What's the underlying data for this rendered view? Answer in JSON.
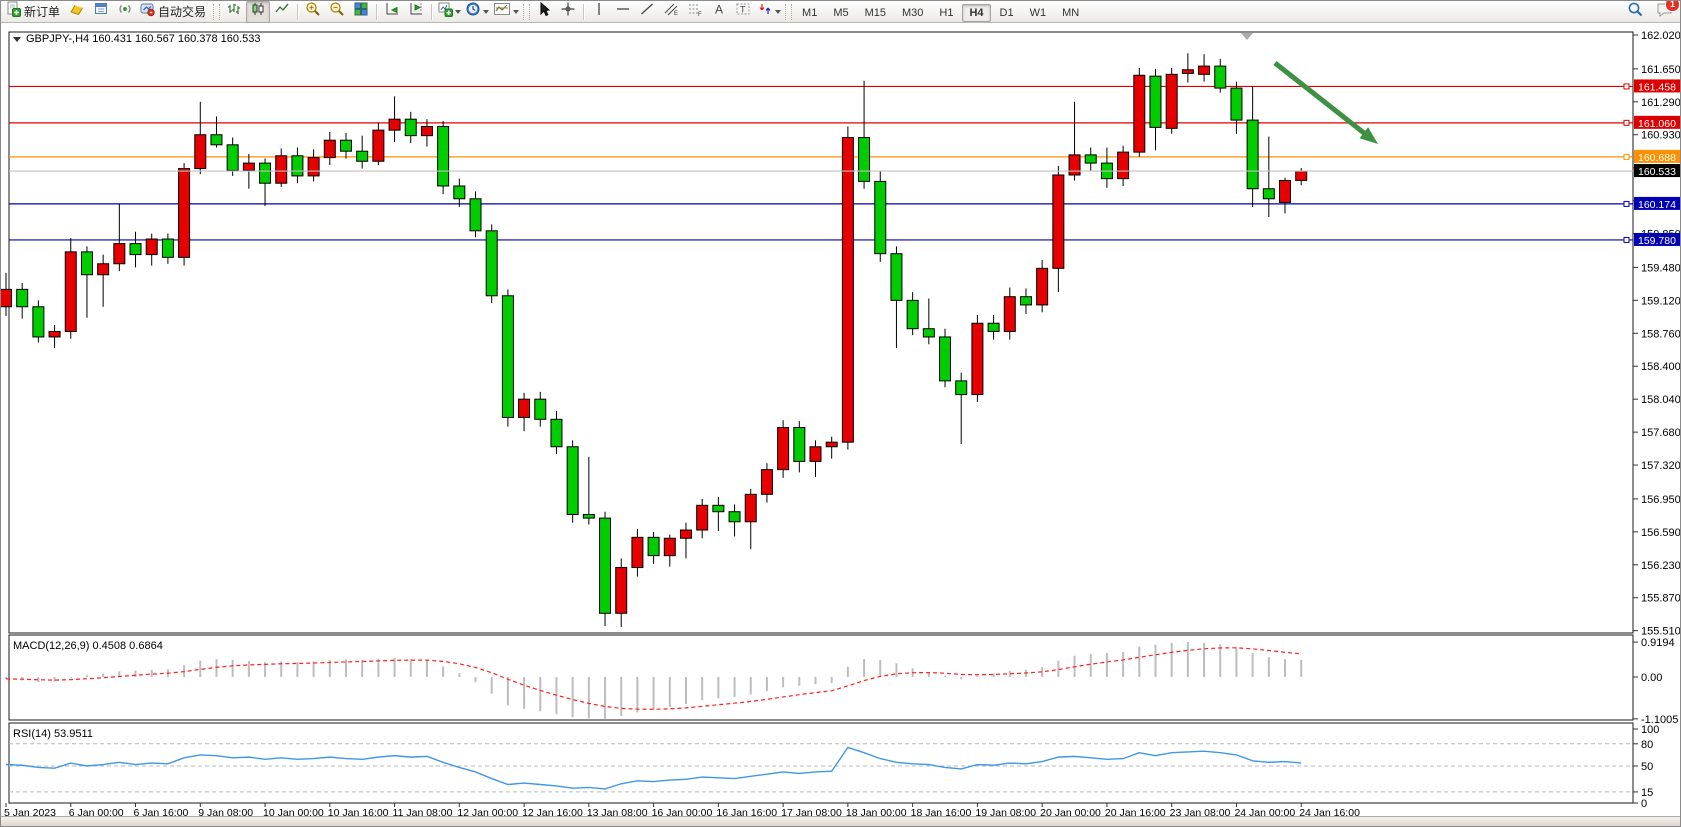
{
  "toolbar": {
    "new_order_label": "新订单",
    "auto_trading_label": "自动交易",
    "timeframes": [
      {
        "label": "M1",
        "active": false
      },
      {
        "label": "M5",
        "active": false
      },
      {
        "label": "M15",
        "active": false
      },
      {
        "label": "M30",
        "active": false
      },
      {
        "label": "H1",
        "active": false
      },
      {
        "label": "H4",
        "active": true
      },
      {
        "label": "D1",
        "active": false
      },
      {
        "label": "W1",
        "active": false
      },
      {
        "label": "MN",
        "active": false
      }
    ],
    "notification_count": "1"
  },
  "chart": {
    "title": "GBPJPY-,H4  160.431 160.567 160.378 160.533",
    "symbol": "GBPJPY-",
    "timeframe": "H4",
    "current_bar": {
      "open": "160.431",
      "high": "160.567",
      "low": "160.378",
      "close": "160.533"
    },
    "price_axis_ticks": [
      "162.020",
      "161.650",
      "161.290",
      "160.930",
      "160.570",
      "160.210",
      "159.850",
      "159.480",
      "159.120",
      "158.760",
      "158.400",
      "158.040",
      "157.680",
      "157.320",
      "156.950",
      "156.590",
      "156.230",
      "155.870",
      "155.510"
    ],
    "levels": [
      {
        "price": 161.458,
        "label": "161.458",
        "color": "#dd0000"
      },
      {
        "price": 161.06,
        "label": "161.060",
        "color": "#dd0000"
      },
      {
        "price": 160.688,
        "label": "160.688",
        "color": "#ff9000"
      },
      {
        "price": 160.174,
        "label": "160.174",
        "color": "#0000b4"
      },
      {
        "price": 159.78,
        "label": "159.780",
        "color": "#0000b4"
      }
    ],
    "current_price": {
      "value": 160.533,
      "label": "160.533",
      "line_color": "#c0c0c0",
      "badge_color": "#000000"
    },
    "arrow_color": "#3e9142",
    "up_color": "#e60000",
    "down_color": "#00cc00"
  },
  "macd_panel": {
    "label": "MACD(12,26,9) 0.4508 0.6864",
    "main_value": 0.4508,
    "signal_value": 0.6864,
    "axis_ticks": [
      {
        "v": 0.9194,
        "label": "0.9194"
      },
      {
        "v": 0,
        "label": "0.00"
      },
      {
        "v": -1.1005,
        "label": "-1.1005"
      }
    ]
  },
  "rsi_panel": {
    "label": "RSI(14) 53.9511",
    "value": 53.9511,
    "axis_ticks": [
      {
        "v": 100,
        "label": "100"
      },
      {
        "v": 80,
        "label": "80"
      },
      {
        "v": 50,
        "label": "50"
      },
      {
        "v": 15,
        "label": "15"
      },
      {
        "v": 0,
        "label": "0"
      }
    ],
    "level_lines": [
      80,
      50,
      15
    ]
  },
  "time_axis": {
    "labels": [
      "5 Jan 2023",
      "6 Jan 00:00",
      "6 Jan 16:00",
      "9 Jan 08:00",
      "10 Jan 00:00",
      "10 Jan 16:00",
      "11 Jan 08:00",
      "12 Jan 00:00",
      "12 Jan 16:00",
      "13 Jan 08:00",
      "16 Jan 00:00",
      "16 Jan 16:00",
      "17 Jan 08:00",
      "18 Jan 00:00",
      "18 Jan 16:00",
      "19 Jan 08:00",
      "20 Jan 00:00",
      "20 Jan 16:00",
      "23 Jan 08:00",
      "24 Jan 00:00",
      "24 Jan 16:00"
    ],
    "label_every_n_bars": 4
  },
  "chart_data": {
    "type": "candlestick",
    "title": "GBPJPY- H4",
    "ylim": [
      155.51,
      162.02
    ],
    "macd_ylim": [
      -1.1005,
      0.9194
    ],
    "ohlc": [
      [
        159.05,
        159.42,
        158.95,
        159.24
      ],
      [
        159.24,
        159.31,
        158.92,
        159.05
      ],
      [
        159.05,
        159.12,
        158.66,
        158.72
      ],
      [
        158.72,
        158.85,
        158.6,
        158.78
      ],
      [
        158.78,
        159.8,
        158.7,
        159.65
      ],
      [
        159.65,
        159.71,
        158.93,
        159.4
      ],
      [
        159.4,
        159.62,
        159.05,
        159.52
      ],
      [
        159.52,
        160.17,
        159.44,
        159.74
      ],
      [
        159.74,
        159.87,
        159.48,
        159.62
      ],
      [
        159.62,
        159.85,
        159.5,
        159.79
      ],
      [
        159.79,
        159.85,
        159.52,
        159.59
      ],
      [
        159.59,
        160.62,
        159.5,
        160.56
      ],
      [
        160.56,
        161.29,
        160.5,
        160.93
      ],
      [
        160.93,
        161.13,
        160.79,
        160.82
      ],
      [
        160.82,
        160.9,
        160.48,
        160.54
      ],
      [
        160.54,
        160.72,
        160.34,
        160.62
      ],
      [
        160.62,
        160.67,
        160.15,
        160.4
      ],
      [
        160.4,
        160.78,
        160.36,
        160.7
      ],
      [
        160.7,
        160.79,
        160.4,
        160.48
      ],
      [
        160.48,
        160.77,
        160.42,
        160.68
      ],
      [
        160.68,
        160.96,
        160.6,
        160.87
      ],
      [
        160.87,
        160.95,
        160.67,
        160.75
      ],
      [
        160.75,
        160.92,
        160.56,
        160.64
      ],
      [
        160.64,
        161.06,
        160.6,
        160.98
      ],
      [
        160.98,
        161.35,
        160.85,
        161.1
      ],
      [
        161.1,
        161.18,
        160.84,
        160.92
      ],
      [
        160.92,
        161.1,
        160.8,
        161.02
      ],
      [
        161.02,
        161.08,
        160.28,
        160.37
      ],
      [
        160.37,
        160.45,
        160.14,
        160.23
      ],
      [
        160.23,
        160.31,
        159.81,
        159.88
      ],
      [
        159.88,
        159.95,
        159.09,
        159.17
      ],
      [
        159.17,
        159.24,
        157.74,
        157.84
      ],
      [
        157.84,
        158.11,
        157.69,
        158.04
      ],
      [
        158.04,
        158.12,
        157.74,
        157.82
      ],
      [
        157.82,
        157.91,
        157.44,
        157.52
      ],
      [
        157.52,
        157.59,
        156.69,
        156.78
      ],
      [
        156.78,
        157.41,
        156.67,
        156.74
      ],
      [
        156.74,
        156.81,
        155.56,
        155.7
      ],
      [
        155.7,
        156.3,
        155.55,
        156.2
      ],
      [
        156.2,
        156.62,
        156.1,
        156.53
      ],
      [
        156.53,
        156.59,
        156.24,
        156.33
      ],
      [
        156.33,
        156.56,
        156.21,
        156.52
      ],
      [
        156.52,
        156.69,
        156.3,
        156.61
      ],
      [
        156.61,
        156.95,
        156.52,
        156.88
      ],
      [
        156.88,
        156.97,
        156.6,
        156.81
      ],
      [
        156.81,
        156.89,
        156.54,
        156.7
      ],
      [
        156.7,
        157.06,
        156.4,
        157.0
      ],
      [
        157.0,
        157.34,
        156.91,
        157.27
      ],
      [
        157.27,
        157.81,
        157.18,
        157.73
      ],
      [
        157.73,
        157.8,
        157.24,
        157.36
      ],
      [
        157.36,
        157.59,
        157.19,
        157.52
      ],
      [
        157.52,
        157.63,
        157.39,
        157.57
      ],
      [
        157.57,
        161.02,
        157.49,
        160.9
      ],
      [
        160.9,
        161.52,
        160.34,
        160.42
      ],
      [
        160.42,
        160.53,
        159.54,
        159.63
      ],
      [
        159.63,
        159.71,
        158.6,
        159.12
      ],
      [
        159.12,
        159.21,
        158.74,
        158.81
      ],
      [
        158.81,
        159.14,
        158.64,
        158.72
      ],
      [
        158.72,
        158.81,
        158.17,
        158.24
      ],
      [
        158.24,
        158.33,
        157.55,
        158.09
      ],
      [
        158.09,
        158.96,
        158.01,
        158.87
      ],
      [
        158.87,
        158.96,
        158.69,
        158.78
      ],
      [
        158.78,
        159.26,
        158.69,
        159.16
      ],
      [
        159.16,
        159.25,
        158.97,
        159.07
      ],
      [
        159.07,
        159.56,
        158.99,
        159.47
      ],
      [
        159.47,
        160.59,
        159.21,
        160.49
      ],
      [
        160.49,
        161.29,
        160.43,
        160.71
      ],
      [
        160.71,
        160.79,
        160.54,
        160.62
      ],
      [
        160.62,
        160.79,
        160.35,
        160.45
      ],
      [
        160.45,
        160.81,
        160.37,
        160.74
      ],
      [
        160.74,
        161.66,
        160.69,
        161.58
      ],
      [
        161.57,
        161.65,
        160.76,
        161.01
      ],
      [
        161.0,
        161.66,
        160.94,
        161.59
      ],
      [
        161.6,
        161.82,
        161.5,
        161.64
      ],
      [
        161.59,
        161.81,
        161.51,
        161.68
      ],
      [
        161.68,
        161.76,
        161.39,
        161.44
      ],
      [
        161.44,
        161.51,
        160.94,
        161.09
      ],
      [
        161.09,
        161.46,
        160.14,
        160.34
      ],
      [
        160.34,
        160.91,
        160.03,
        160.23
      ],
      [
        160.19,
        160.46,
        160.07,
        160.43
      ],
      [
        160.431,
        160.567,
        160.378,
        160.533
      ]
    ],
    "macd": [
      -0.05,
      -0.09,
      -0.13,
      -0.12,
      -0.02,
      0.05,
      0.09,
      0.15,
      0.17,
      0.19,
      0.2,
      0.31,
      0.43,
      0.47,
      0.45,
      0.42,
      0.39,
      0.41,
      0.39,
      0.41,
      0.44,
      0.46,
      0.45,
      0.48,
      0.5,
      0.47,
      0.44,
      0.28,
      0.1,
      -0.14,
      -0.44,
      -0.75,
      -0.84,
      -0.9,
      -0.98,
      -1.06,
      -1.09,
      -1.1,
      -1.03,
      -0.93,
      -0.86,
      -0.79,
      -0.71,
      -0.61,
      -0.56,
      -0.53,
      -0.46,
      -0.37,
      -0.27,
      -0.23,
      -0.19,
      -0.16,
      0.27,
      0.47,
      0.45,
      0.36,
      0.23,
      0.13,
      0.03,
      -0.06,
      0.03,
      0.09,
      0.16,
      0.19,
      0.26,
      0.43,
      0.56,
      0.61,
      0.63,
      0.66,
      0.8,
      0.85,
      0.9,
      0.9194,
      0.9,
      0.86,
      0.78,
      0.63,
      0.52,
      0.47,
      0.4508
    ],
    "rsi": [
      52,
      51,
      48,
      47,
      54,
      50,
      52,
      55,
      52,
      54,
      53,
      61,
      65,
      64,
      61,
      62,
      59,
      61,
      59,
      60,
      62,
      60,
      59,
      62,
      64,
      62,
      63,
      55,
      48,
      42,
      33,
      25,
      27,
      25,
      23,
      20,
      21,
      19,
      26,
      30,
      29,
      31,
      32,
      35,
      34,
      33,
      36,
      39,
      42,
      40,
      42,
      43,
      75,
      68,
      60,
      55,
      53,
      52,
      48,
      46,
      52,
      51,
      54,
      53,
      56,
      62,
      63,
      61,
      59,
      60,
      68,
      64,
      68,
      69,
      70,
      68,
      65,
      57,
      55,
      56,
      53.95
    ]
  }
}
